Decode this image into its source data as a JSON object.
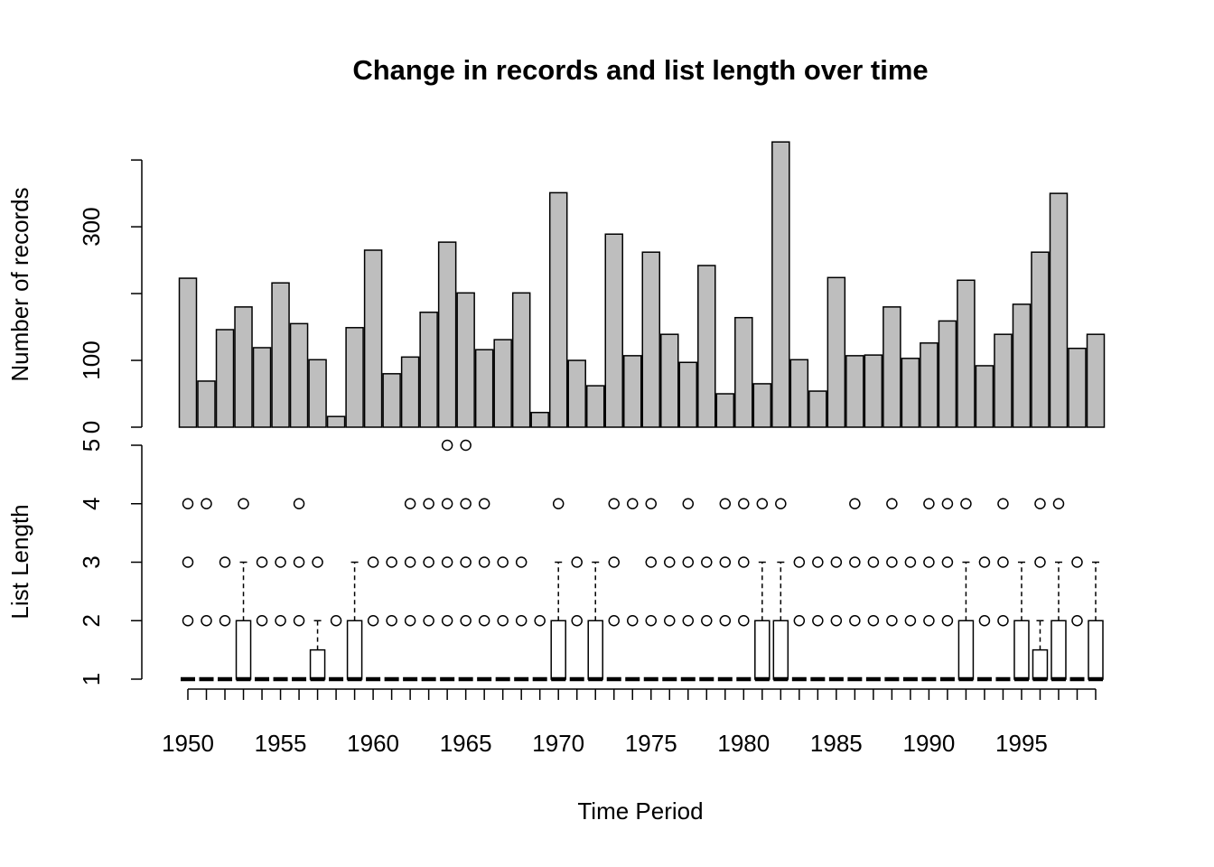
{
  "chart_data": [
    {
      "type": "bar",
      "title": "Change in records and list length over time",
      "ylabel": "Number of records",
      "x": [
        1950,
        1951,
        1952,
        1953,
        1954,
        1955,
        1956,
        1957,
        1958,
        1959,
        1960,
        1961,
        1962,
        1963,
        1964,
        1965,
        1966,
        1967,
        1968,
        1969,
        1970,
        1971,
        1972,
        1973,
        1974,
        1975,
        1976,
        1977,
        1978,
        1979,
        1980,
        1981,
        1982,
        1983,
        1984,
        1985,
        1986,
        1987,
        1988,
        1989,
        1990,
        1991,
        1992,
        1993,
        1994,
        1995,
        1996,
        1997,
        1998,
        1999
      ],
      "values": [
        223,
        69,
        146,
        180,
        119,
        216,
        155,
        101,
        16,
        149,
        265,
        80,
        105,
        172,
        277,
        201,
        116,
        131,
        201,
        22,
        351,
        100,
        62,
        289,
        107,
        262,
        139,
        97,
        242,
        50,
        164,
        65,
        427,
        101,
        54,
        224,
        107,
        108,
        180,
        103,
        126,
        159,
        220,
        92,
        139,
        184,
        262,
        350,
        118,
        139
      ],
      "color": "#bebebe",
      "ylim": [
        0,
        434
      ],
      "yticks": [
        0,
        100,
        300
      ],
      "minor_yticks": [
        200,
        400
      ]
    },
    {
      "type": "box",
      "ylabel": "List Length",
      "xlabel": "Time Period",
      "x": [
        1950,
        1951,
        1952,
        1953,
        1954,
        1955,
        1956,
        1957,
        1958,
        1959,
        1960,
        1961,
        1962,
        1963,
        1964,
        1965,
        1966,
        1967,
        1968,
        1969,
        1970,
        1971,
        1972,
        1973,
        1974,
        1975,
        1976,
        1977,
        1978,
        1979,
        1980,
        1981,
        1982,
        1983,
        1984,
        1985,
        1986,
        1987,
        1988,
        1989,
        1990,
        1991,
        1992,
        1993,
        1994,
        1995,
        1996,
        1997,
        1998,
        1999
      ],
      "xticks": [
        1950,
        1955,
        1960,
        1965,
        1970,
        1975,
        1980,
        1985,
        1990,
        1995
      ],
      "whisker_low": [
        1,
        1,
        1,
        1,
        1,
        1,
        1,
        1,
        1,
        1,
        1,
        1,
        1,
        1,
        1,
        1,
        1,
        1,
        1,
        1,
        1,
        1,
        1,
        1,
        1,
        1,
        1,
        1,
        1,
        1,
        1,
        1,
        1,
        1,
        1,
        1,
        1,
        1,
        1,
        1,
        1,
        1,
        1,
        1,
        1,
        1,
        1,
        1,
        1,
        1
      ],
      "q1": [
        1,
        1,
        1,
        1,
        1,
        1,
        1,
        1,
        1,
        1,
        1,
        1,
        1,
        1,
        1,
        1,
        1,
        1,
        1,
        1,
        1,
        1,
        1,
        1,
        1,
        1,
        1,
        1,
        1,
        1,
        1,
        1,
        1,
        1,
        1,
        1,
        1,
        1,
        1,
        1,
        1,
        1,
        1,
        1,
        1,
        1,
        1,
        1,
        1,
        1
      ],
      "median": [
        1,
        1,
        1,
        1,
        1,
        1,
        1,
        1,
        1,
        1,
        1,
        1,
        1,
        1,
        1,
        1,
        1,
        1,
        1,
        1,
        1,
        1,
        1,
        1,
        1,
        1,
        1,
        1,
        1,
        1,
        1,
        1,
        1,
        1,
        1,
        1,
        1,
        1,
        1,
        1,
        1,
        1,
        1,
        1,
        1,
        1,
        1,
        1,
        1,
        1
      ],
      "q3": [
        1,
        1,
        1,
        2,
        1,
        1,
        1,
        1.5,
        1,
        2,
        1,
        1,
        1,
        1,
        1,
        1,
        1,
        1,
        1,
        1,
        2,
        1,
        2,
        1,
        1,
        1,
        1,
        1,
        1,
        1,
        1,
        2,
        2,
        1,
        1,
        1,
        1,
        1,
        1,
        1,
        1,
        1,
        2,
        1,
        1,
        2,
        1.5,
        2,
        1,
        2
      ],
      "whisker_high": [
        1,
        1,
        1,
        3,
        1,
        1,
        1,
        2,
        1,
        3,
        1,
        1,
        1,
        1,
        1,
        1,
        1,
        1,
        1,
        1,
        3,
        1,
        3,
        1,
        1,
        1,
        1,
        1,
        1,
        1,
        1,
        3,
        3,
        1,
        1,
        1,
        1,
        1,
        1,
        1,
        1,
        1,
        3,
        1,
        1,
        3,
        2,
        3,
        1,
        3
      ],
      "outliers": [
        [
          2,
          3,
          4
        ],
        [
          2,
          4
        ],
        [
          2,
          3
        ],
        [
          4
        ],
        [
          2,
          3
        ],
        [
          2,
          3
        ],
        [
          2,
          3,
          4
        ],
        [
          3
        ],
        [
          2
        ],
        [],
        [
          2,
          3
        ],
        [
          2,
          3
        ],
        [
          2,
          3,
          4
        ],
        [
          2,
          3,
          4
        ],
        [
          2,
          3,
          4,
          5
        ],
        [
          2,
          3,
          4,
          5
        ],
        [
          2,
          3,
          4
        ],
        [
          2,
          3
        ],
        [
          2,
          3
        ],
        [
          2
        ],
        [
          4
        ],
        [
          2,
          3
        ],
        [],
        [
          2,
          3,
          4
        ],
        [
          2,
          4
        ],
        [
          2,
          3,
          4
        ],
        [
          2,
          3
        ],
        [
          2,
          3,
          4
        ],
        [
          2,
          3
        ],
        [
          2,
          3,
          4
        ],
        [
          2,
          3,
          4
        ],
        [
          4
        ],
        [
          4
        ],
        [
          2,
          3
        ],
        [
          2,
          3
        ],
        [
          2,
          3
        ],
        [
          2,
          3,
          4
        ],
        [
          2,
          3
        ],
        [
          2,
          3,
          4
        ],
        [
          2,
          3
        ],
        [
          2,
          3,
          4
        ],
        [
          2,
          3,
          4
        ],
        [
          4
        ],
        [
          2,
          3
        ],
        [
          2,
          3,
          4
        ],
        [],
        [
          3,
          4
        ],
        [
          4
        ],
        [
          2,
          3
        ],
        []
      ],
      "ylim": [
        1,
        5
      ],
      "yticks": [
        1,
        2,
        3,
        4,
        5
      ]
    }
  ]
}
